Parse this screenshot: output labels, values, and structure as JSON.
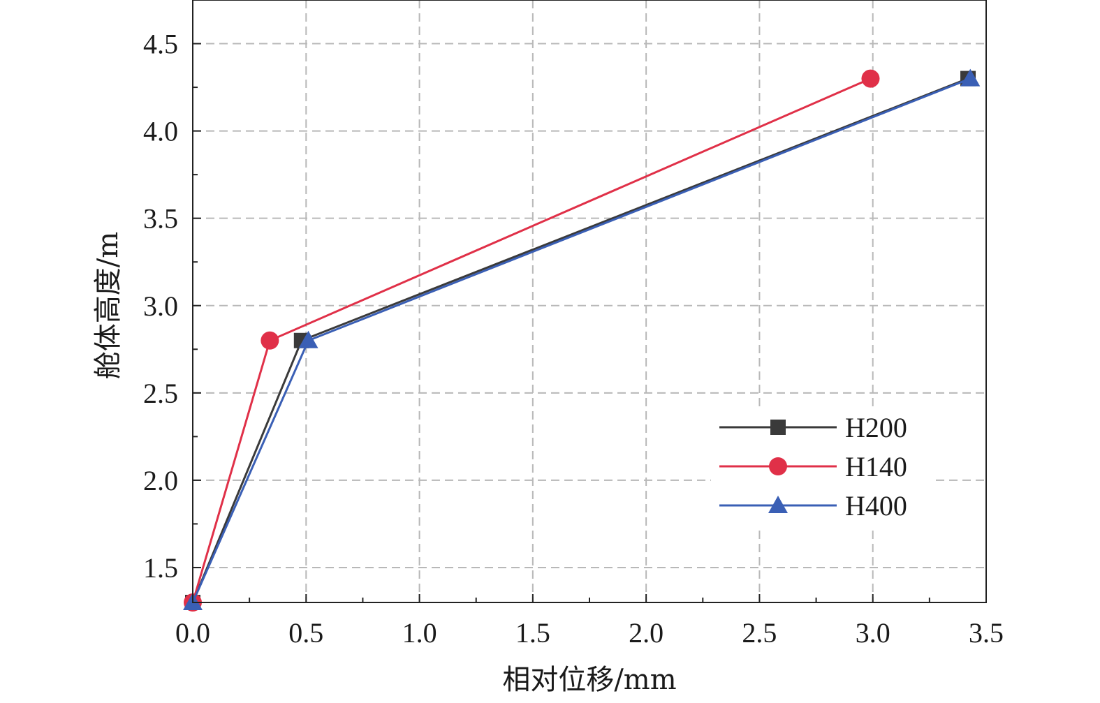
{
  "chart_data": {
    "type": "line",
    "xlabel": "相对位移/mm",
    "ylabel": "舱体高度/m",
    "xlim": [
      0,
      3.5
    ],
    "ylim": [
      1.3,
      4.75
    ],
    "x_ticks": [
      "0.0",
      "0.5",
      "1.0",
      "1.5",
      "2.0",
      "2.5",
      "3.0",
      "3.5"
    ],
    "x_tick_values": [
      0,
      0.5,
      1.0,
      1.5,
      2.0,
      2.5,
      3.0,
      3.5
    ],
    "y_ticks": [
      "1.5",
      "2.0",
      "2.5",
      "3.0",
      "3.5",
      "4.0",
      "4.5"
    ],
    "y_tick_values": [
      1.5,
      2.0,
      2.5,
      3.0,
      3.5,
      4.0,
      4.5
    ],
    "grid": true,
    "legend_position": "bottom-right",
    "series": [
      {
        "name": "H200",
        "color": "#3a3a3a",
        "marker": "square",
        "x": [
          0.0,
          0.48,
          3.42
        ],
        "y": [
          1.3,
          2.8,
          4.3
        ]
      },
      {
        "name": "H140",
        "color": "#e03048",
        "marker": "circle",
        "x": [
          0.0,
          0.34,
          2.99
        ],
        "y": [
          1.3,
          2.8,
          4.3
        ]
      },
      {
        "name": "H400",
        "color": "#3a5fb5",
        "marker": "triangle",
        "x": [
          0.0,
          0.51,
          3.43
        ],
        "y": [
          1.3,
          2.8,
          4.3
        ]
      }
    ]
  }
}
